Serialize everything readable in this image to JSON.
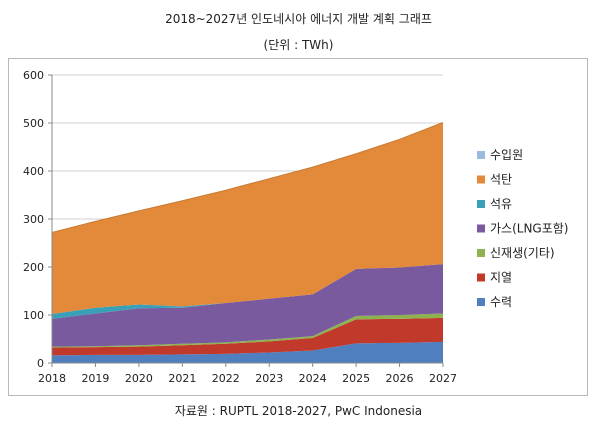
{
  "header": {
    "title": "2018~2027년 인도네시아 에너지 개발 계획 그래프",
    "unit": "(단위 : TWh)"
  },
  "footer": {
    "source": "자료원 : RUPTL 2018-2027, PwC Indonesia"
  },
  "chart_data": {
    "type": "area",
    "stacked": true,
    "x": [
      "2018",
      "2019",
      "2020",
      "2021",
      "2022",
      "2023",
      "2024",
      "2025",
      "2026",
      "2027"
    ],
    "ylim": [
      0,
      600
    ],
    "yticks": [
      0,
      100,
      200,
      300,
      400,
      500,
      600
    ],
    "grid": true,
    "legend_position": "right",
    "series": [
      {
        "name": "수력",
        "color": "#4f7fbf",
        "values": [
          16,
          17,
          17,
          18,
          19,
          22,
          26,
          41,
          42,
          44
        ]
      },
      {
        "name": "지열",
        "color": "#c0392b",
        "values": [
          16,
          16,
          17,
          19,
          21,
          23,
          26,
          50,
          50,
          50
        ]
      },
      {
        "name": "신재생(기타)",
        "color": "#8fb250",
        "values": [
          2,
          2,
          3,
          3,
          3,
          4,
          4,
          7,
          8,
          9
        ]
      },
      {
        "name": "가스(LNG포함)",
        "color": "#7a5a9e",
        "values": [
          58,
          68,
          77,
          75,
          82,
          85,
          87,
          98,
          99,
          103
        ]
      },
      {
        "name": "석유",
        "color": "#3aa0b8",
        "values": [
          10,
          12,
          8,
          3,
          0,
          0,
          0,
          0,
          0,
          0
        ]
      },
      {
        "name": "석탄",
        "color": "#e2893a",
        "values": [
          170,
          180,
          195,
          220,
          235,
          250,
          265,
          240,
          267,
          295
        ]
      },
      {
        "name": "수입원",
        "color": "#9ab9dc",
        "values": [
          0,
          0,
          0,
          0,
          0,
          0,
          0,
          0,
          0,
          0
        ]
      }
    ]
  }
}
